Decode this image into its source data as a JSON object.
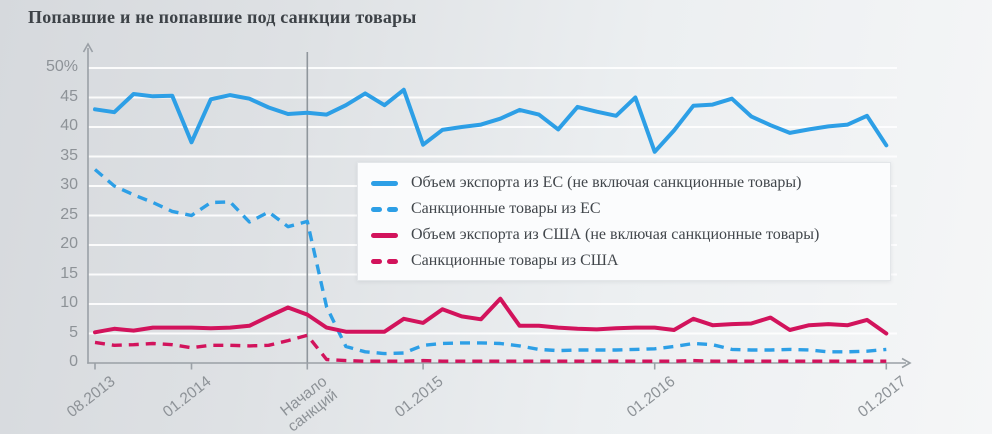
{
  "chart_data": {
    "type": "line",
    "title": "Попавшие и не попавшие под санкции товары",
    "xlabel": "",
    "ylabel": "",
    "ylim": [
      0,
      50
    ],
    "grid": "horizontal-white-lines",
    "legend_position": "overlay-center-right",
    "x": [
      "08.2013",
      "09.2013",
      "10.2013",
      "11.2013",
      "12.2013",
      "01.2014",
      "02.2014",
      "03.2014",
      "04.2014",
      "05.2014",
      "06.2014",
      "07.2014",
      "08.2014",
      "09.2014",
      "10.2014",
      "11.2014",
      "12.2014",
      "01.2015",
      "02.2015",
      "03.2015",
      "04.2015",
      "05.2015",
      "06.2015",
      "07.2015",
      "08.2015",
      "09.2015",
      "10.2015",
      "11.2015",
      "12.2015",
      "01.2016",
      "02.2016",
      "03.2016",
      "04.2016",
      "05.2016",
      "06.2016",
      "07.2016",
      "08.2016",
      "09.2016",
      "10.2016",
      "11.2016",
      "12.2016",
      "01.2017"
    ],
    "x_axis_ticks": [
      {
        "index": 0,
        "label": "08.2013",
        "lines": [
          "08.2013"
        ]
      },
      {
        "index": 5,
        "label": "01.2014",
        "lines": [
          "01.2014"
        ]
      },
      {
        "index": 11,
        "label": "Начало санкций",
        "lines": [
          "Начало",
          "санкций"
        ]
      },
      {
        "index": 17,
        "label": "01.2015",
        "lines": [
          "01.2015"
        ]
      },
      {
        "index": 29,
        "label": "01.2016",
        "lines": [
          "01.2016"
        ]
      },
      {
        "index": 41,
        "label": "01.2017",
        "lines": [
          "01.2017"
        ]
      }
    ],
    "y_ticks": [
      {
        "value": 0,
        "label": "0"
      },
      {
        "value": 5,
        "label": "5"
      },
      {
        "value": 10,
        "label": "10"
      },
      {
        "value": 15,
        "label": "15"
      },
      {
        "value": 20,
        "label": "20"
      },
      {
        "value": 25,
        "label": "25"
      },
      {
        "value": 30,
        "label": "30"
      },
      {
        "value": 35,
        "label": "35"
      },
      {
        "value": 40,
        "label": "40"
      },
      {
        "value": 45,
        "label": "45"
      },
      {
        "value": 50,
        "label": "50%"
      }
    ],
    "annotation_line": {
      "index": 11,
      "label": "Начало санкций"
    },
    "colors": {
      "eu": "#2d9fe6",
      "us": "#d2135c",
      "axis": "#9aa0a6",
      "tick_text": "#8d9297"
    },
    "series": [
      {
        "id": "eu-total",
        "name": "Объем экспорта из ЕС (не включая санкционные товары)",
        "color": "#2d9fe6",
        "style": "solid",
        "values": [
          43.0,
          42.5,
          45.6,
          45.2,
          45.3,
          37.4,
          44.7,
          45.4,
          44.8,
          43.3,
          42.2,
          42.4,
          42.1,
          43.7,
          45.7,
          43.7,
          46.3,
          37.0,
          39.5,
          40.0,
          40.4,
          41.4,
          42.9,
          42.1,
          39.6,
          43.4,
          42.6,
          41.9,
          45.0,
          35.8,
          39.4,
          43.6,
          43.8,
          44.8,
          41.8,
          40.3,
          39.0,
          39.6,
          40.1,
          40.4,
          41.9,
          36.9
        ]
      },
      {
        "id": "eu-sanctioned",
        "name": "Санкционные товары из ЕС",
        "color": "#2d9fe6",
        "style": "dashed",
        "values": [
          32.8,
          30.0,
          28.5,
          27.2,
          25.7,
          25.0,
          27.2,
          27.3,
          23.9,
          25.6,
          23.1,
          24.0,
          9.5,
          2.8,
          1.9,
          1.6,
          1.7,
          3.0,
          3.3,
          3.4,
          3.4,
          3.3,
          2.9,
          2.3,
          2.1,
          2.2,
          2.2,
          2.2,
          2.3,
          2.4,
          2.8,
          3.3,
          3.1,
          2.3,
          2.2,
          2.2,
          2.3,
          2.2,
          1.9,
          1.9,
          2.0,
          2.3
        ]
      },
      {
        "id": "us-total",
        "name": "Объем экспорта из США (не включая санкционные товары)",
        "color": "#d2135c",
        "style": "solid",
        "values": [
          5.2,
          5.8,
          5.5,
          6.0,
          6.0,
          6.0,
          5.9,
          6.0,
          6.3,
          7.9,
          9.4,
          8.2,
          6.0,
          5.3,
          5.3,
          5.3,
          7.5,
          6.8,
          9.1,
          7.9,
          7.4,
          10.9,
          6.3,
          6.3,
          6.0,
          5.8,
          5.7,
          5.9,
          6.0,
          6.0,
          5.6,
          7.5,
          6.4,
          6.6,
          6.7,
          7.7,
          5.6,
          6.4,
          6.6,
          6.4,
          7.3,
          5.0
        ]
      },
      {
        "id": "us-sanctioned",
        "name": "Санкционные товары из США",
        "color": "#d2135c",
        "style": "dashed",
        "values": [
          3.5,
          3.0,
          3.1,
          3.3,
          3.1,
          2.6,
          3.0,
          3.0,
          2.9,
          3.0,
          3.8,
          4.7,
          0.6,
          0.4,
          0.3,
          0.3,
          0.3,
          0.4,
          0.3,
          0.3,
          0.3,
          0.3,
          0.3,
          0.3,
          0.3,
          0.3,
          0.3,
          0.3,
          0.3,
          0.3,
          0.3,
          0.4,
          0.3,
          0.3,
          0.3,
          0.3,
          0.3,
          0.3,
          0.3,
          0.3,
          0.3,
          0.3
        ]
      }
    ]
  }
}
